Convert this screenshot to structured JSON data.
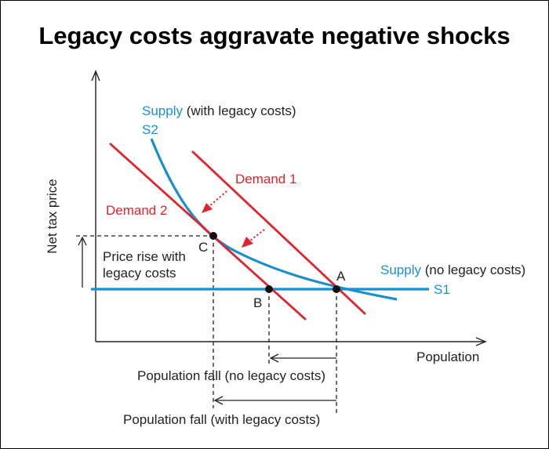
{
  "title": "Legacy costs aggravate negative shocks",
  "axes": {
    "y_label": "Net tax price",
    "x_label": "Population"
  },
  "curves": {
    "supply_legacy": {
      "word": "Supply",
      "rest": " (with legacy costs)",
      "id": "S2"
    },
    "supply_flat": {
      "word": "Supply",
      "rest": " (no legacy costs)",
      "id": "S1"
    },
    "demand1": "Demand 1",
    "demand2": "Demand 2"
  },
  "points": {
    "a": "A",
    "b": "B",
    "c": "C"
  },
  "annotations": {
    "price_rise_line1": "Price rise with",
    "price_rise_line2": "legacy costs",
    "pop_fall_no_legacy": "Population fall (no legacy costs)",
    "pop_fall_with_legacy": "Population fall (with legacy costs)"
  },
  "colors": {
    "supply": "#1a8fd0",
    "demand": "#e0242d",
    "axis": "#222222"
  }
}
